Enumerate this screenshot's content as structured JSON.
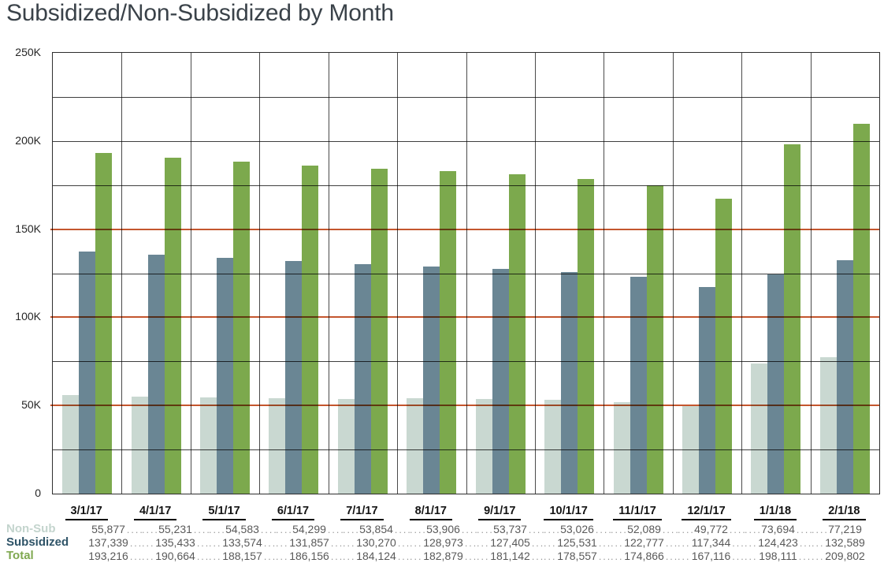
{
  "title": "Subsidized/Non-Subsidized by Month",
  "chart_data": {
    "type": "bar",
    "title": "Subsidized/Non-Subsidized by Month",
    "categories": [
      "3/1/17",
      "4/1/17",
      "5/1/17",
      "6/1/17",
      "7/1/17",
      "8/1/17",
      "9/1/17",
      "10/1/17",
      "11/1/17",
      "12/1/17",
      "1/1/18",
      "2/1/18"
    ],
    "series": [
      {
        "name": "Non-Sub",
        "bar_color": "#c9d8d1",
        "label_color": "#c3d4cd",
        "values": [
          55877,
          55231,
          54583,
          54299,
          53854,
          53906,
          53737,
          53026,
          52089,
          49772,
          73694,
          77219
        ]
      },
      {
        "name": "Subsidized",
        "bar_color": "#6a8694",
        "label_color": "#2f5468",
        "values": [
          137339,
          135433,
          133574,
          131857,
          130270,
          128973,
          127405,
          125531,
          122777,
          117344,
          124423,
          132589
        ]
      },
      {
        "name": "Total",
        "bar_color": "#7ca94d",
        "label_color": "#7fa850",
        "values": [
          193216,
          190664,
          188157,
          186156,
          184124,
          182879,
          181142,
          178557,
          174866,
          167116,
          198111,
          209802
        ]
      }
    ],
    "xlabel": "",
    "ylabel": "",
    "ylim": [
      0,
      250000
    ],
    "y_ticks": [
      {
        "value": 0,
        "label": "0"
      },
      {
        "value": 50000,
        "label": "50K"
      },
      {
        "value": 100000,
        "label": "100K"
      },
      {
        "value": 150000,
        "label": "150K"
      },
      {
        "value": 200000,
        "label": "200K"
      },
      {
        "value": 250000,
        "label": "250K"
      }
    ],
    "grid_interval": 25000,
    "grid_color": "#3f3f3f",
    "reference_lines": [
      50000,
      100000,
      150000
    ],
    "reference_line_color": "#c4562e",
    "legend_position": "table-below",
    "grid": true
  }
}
